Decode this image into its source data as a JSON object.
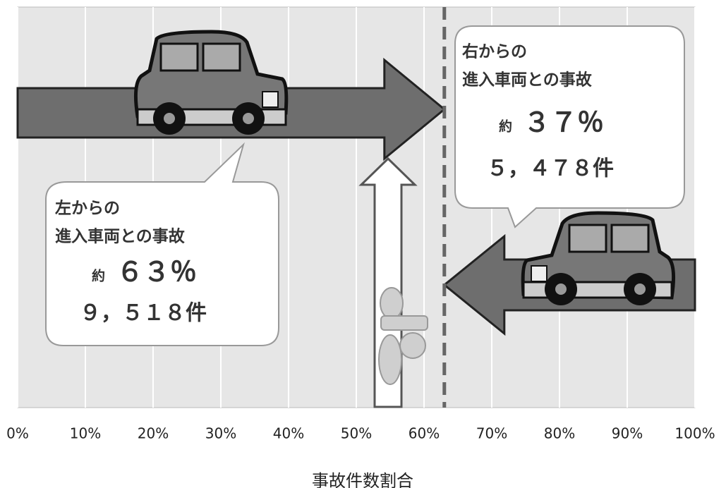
{
  "chart_data": {
    "type": "split-arrows",
    "xlabel": "事故件数割合",
    "xlim": [
      0,
      100
    ],
    "xticks": [
      {
        "value": 0,
        "label": "0%"
      },
      {
        "value": 10,
        "label": "10%"
      },
      {
        "value": 20,
        "label": "20%"
      },
      {
        "value": 30,
        "label": "30%"
      },
      {
        "value": 40,
        "label": "40%"
      },
      {
        "value": 50,
        "label": "50%"
      },
      {
        "value": 60,
        "label": "60%"
      },
      {
        "value": 70,
        "label": "70%"
      },
      {
        "value": 80,
        "label": "80%"
      },
      {
        "value": 90,
        "label": "90%"
      },
      {
        "value": 100,
        "label": "100%"
      }
    ],
    "grid": true,
    "color": "#6e6e6e",
    "prefix": "約",
    "series": [
      {
        "name_lines": [
          "左からの",
          "進入車両との事故"
        ],
        "values": [
          63
        ],
        "value_labels": [
          "６３％"
        ],
        "count": 9518,
        "count_label": "９，５１８件"
      },
      {
        "name_lines": [
          "右からの",
          "進入車両との事故"
        ],
        "values": [
          37
        ],
        "value_labels": [
          "３７％"
        ],
        "count": 5478,
        "count_label": "５，４７８件"
      }
    ]
  }
}
